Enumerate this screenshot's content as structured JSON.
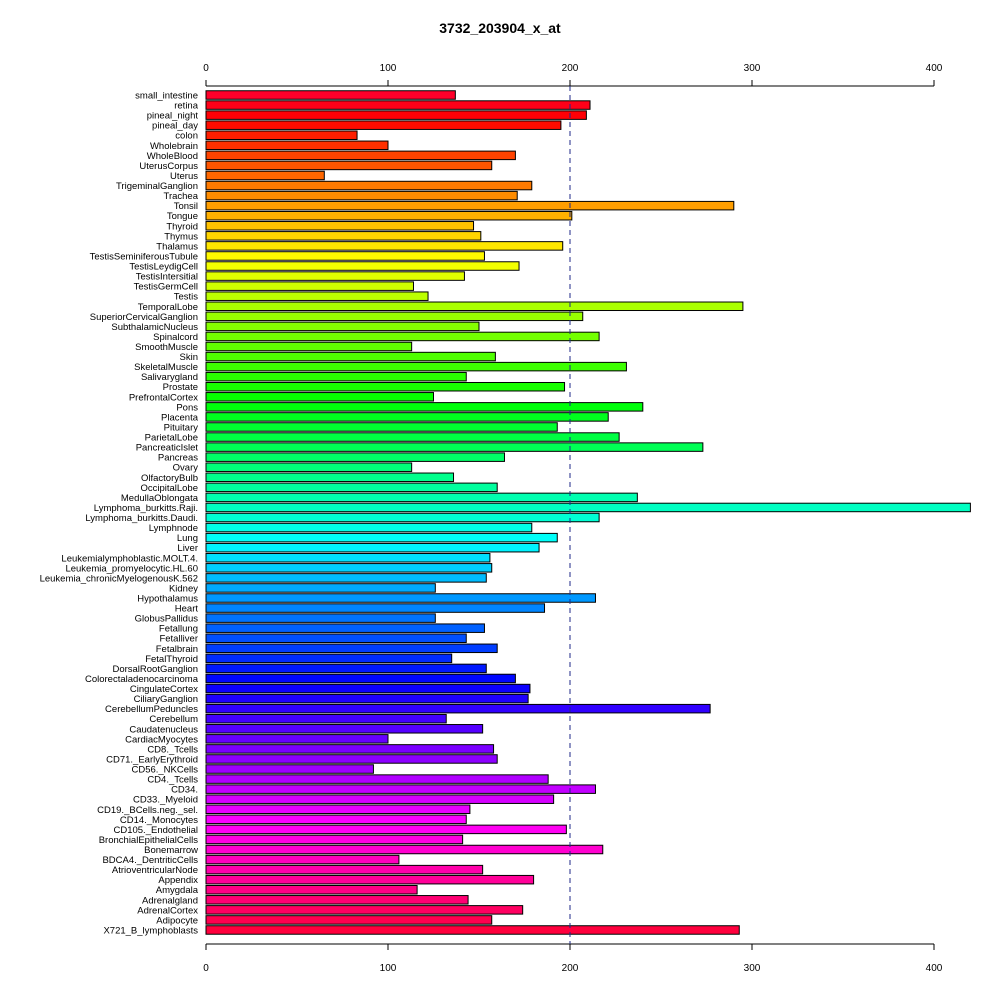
{
  "chart_data": {
    "type": "bar",
    "orientation": "horizontal",
    "title": "3732_203904_x_at",
    "xlabel": "",
    "ylabel": "",
    "xlim": [
      0,
      400
    ],
    "x_ticks": [
      0,
      100,
      200,
      300,
      400
    ],
    "reference_line": 200,
    "grid": false,
    "categories": [
      "small_intestine",
      "retina",
      "pineal_night",
      "pineal_day",
      "colon",
      "Wholebrain",
      "WholeBlood",
      "UterusCorpus",
      "Uterus",
      "TrigeminalGanglion",
      "Trachea",
      "Tonsil",
      "Tongue",
      "Thyroid",
      "Thymus",
      "Thalamus",
      "TestisSeminiferousTubule",
      "TestisLeydigCell",
      "TestisIntersitial",
      "TestisGermCell",
      "Testis",
      "TemporalLobe",
      "SuperiorCervicalGanglion",
      "SubthalamicNucleus",
      "Spinalcord",
      "SmoothMuscle",
      "Skin",
      "SkeletalMuscle",
      "Salivarygland",
      "Prostate",
      "PrefrontalCortex",
      "Pons",
      "Placenta",
      "Pituitary",
      "ParietalLobe",
      "PancreaticIslet",
      "Pancreas",
      "Ovary",
      "OlfactoryBulb",
      "OccipitalLobe",
      "MedullaOblongata",
      "Lymphoma_burkitts.Raji.",
      "Lymphoma_burkitts.Daudi.",
      "Lymphnode",
      "Lung",
      "Liver",
      "Leukemialymphoblastic.MOLT.4.",
      "Leukemia_promyelocytic.HL.60",
      "Leukemia_chronicMyelogenousK.562",
      "Kidney",
      "Hypothalamus",
      "Heart",
      "GlobusPallidus",
      "Fetallung",
      "Fetalliver",
      "Fetalbrain",
      "FetalThyroid",
      "DorsalRootGanglion",
      "Colorectaladenocarcinoma",
      "CingulateCortex",
      "CiliaryGanglion",
      "CerebellumPeduncles",
      "Cerebellum",
      "Caudatenucleus",
      "CardiacMyocytes",
      "CD8._Tcells",
      "CD71._EarlyErythroid",
      "CD56._NKCells",
      "CD4._Tcells",
      "CD34.",
      "CD33._Myeloid",
      "CD19._BCells.neg._sel.",
      "CD14._Monocytes",
      "CD105._Endothelial",
      "BronchialEpithelialCells",
      "Bonemarrow",
      "BDCA4._DentriticCells",
      "AtrioventricularNode",
      "Appendix",
      "Amygdala",
      "Adrenalgland",
      "AdrenalCortex",
      "Adipocyte",
      "X721_B_lymphoblasts"
    ],
    "values": [
      137,
      211,
      209,
      195,
      83,
      100,
      170,
      157,
      65,
      179,
      171,
      290,
      201,
      147,
      151,
      196,
      153,
      172,
      142,
      114,
      122,
      295,
      207,
      150,
      216,
      113,
      159,
      231,
      143,
      197,
      125,
      240,
      221,
      193,
      227,
      273,
      164,
      113,
      136,
      160,
      237,
      420,
      216,
      179,
      193,
      183,
      156,
      157,
      154,
      126,
      214,
      186,
      126,
      153,
      143,
      160,
      135,
      154,
      170,
      178,
      177,
      277,
      132,
      152,
      100,
      158,
      160,
      92,
      188,
      214,
      191,
      145,
      143,
      198,
      141,
      218,
      106,
      152,
      180,
      116,
      144,
      174,
      157,
      293
    ]
  }
}
